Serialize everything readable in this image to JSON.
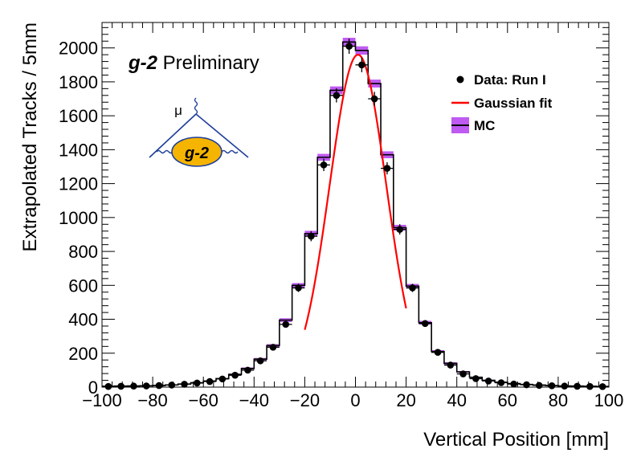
{
  "chart_data": {
    "type": "histogram",
    "title": "",
    "logo_text": "g-2",
    "logo_mu": "μ",
    "watermark_bold": "g-2",
    "watermark_rest": " Preliminary",
    "xlabel": "Vertical Position [mm]",
    "ylabel": "Extrapolated Tracks / 5mm",
    "xlim": [
      -100,
      100
    ],
    "ylim": [
      0,
      2150
    ],
    "xticks": [
      -100,
      -80,
      -60,
      -40,
      -20,
      0,
      20,
      40,
      60,
      80,
      100
    ],
    "yticks": [
      0,
      200,
      400,
      600,
      800,
      1000,
      1200,
      1400,
      1600,
      1800,
      2000
    ],
    "legend_placement": "top-right",
    "legend": [
      "Data: Run I",
      "Gaussian fit",
      "MC"
    ],
    "bin_width": 5,
    "bin_centers": [
      -97.5,
      -92.5,
      -87.5,
      -82.5,
      -77.5,
      -72.5,
      -67.5,
      -62.5,
      -57.5,
      -52.5,
      -47.5,
      -42.5,
      -37.5,
      -32.5,
      -27.5,
      -22.5,
      -17.5,
      -12.5,
      -7.5,
      -2.5,
      2.5,
      7.5,
      12.5,
      17.5,
      22.5,
      27.5,
      32.5,
      37.5,
      42.5,
      47.5,
      52.5,
      57.5,
      62.5,
      67.5,
      72.5,
      77.5,
      82.5,
      87.5,
      92.5,
      97.5
    ],
    "series": [
      {
        "name": "Data: Run I",
        "style": "points",
        "color": "#000000",
        "values": [
          4,
          5,
          6,
          7,
          9,
          12,
          17,
          24,
          33,
          48,
          70,
          100,
          155,
          235,
          370,
          585,
          890,
          1310,
          1720,
          2010,
          1900,
          1700,
          1290,
          930,
          585,
          375,
          205,
          130,
          78,
          50,
          36,
          26,
          18,
          14,
          10,
          8,
          6,
          5,
          4,
          3
        ]
      },
      {
        "name": "MC",
        "style": "step",
        "color": "#000000",
        "band_color": "#bf5af2",
        "values": [
          5,
          6,
          7,
          8,
          10,
          13,
          18,
          26,
          36,
          50,
          75,
          110,
          165,
          245,
          395,
          600,
          905,
          1355,
          1750,
          2035,
          1985,
          1790,
          1370,
          940,
          595,
          380,
          210,
          140,
          90,
          58,
          40,
          29,
          21,
          16,
          12,
          9,
          7,
          6,
          5,
          4
        ]
      },
      {
        "name": "Gaussian fit",
        "style": "line",
        "color": "#ff0000",
        "amplitude": 1960,
        "mean": 1.0,
        "sigma": 11.2,
        "range": [
          -20,
          20
        ]
      }
    ]
  }
}
